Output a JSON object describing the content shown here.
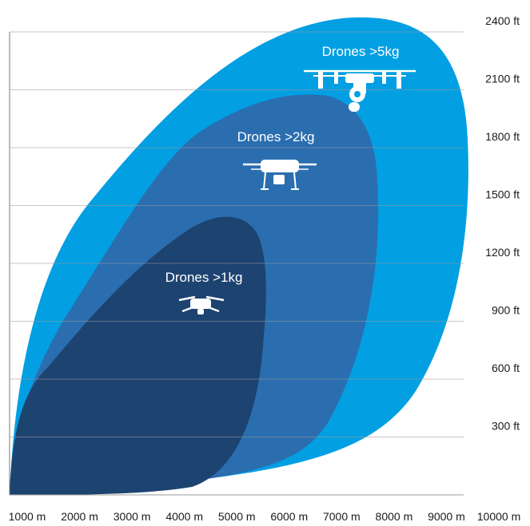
{
  "chart_data": {
    "type": "area",
    "title": "",
    "xlabel": "",
    "ylabel": "",
    "x_ticks": [
      "1000 m",
      "2000 m",
      "3000 m",
      "4000 m",
      "5000 m",
      "6000 m",
      "7000 m",
      "8000 m",
      "9000 m",
      "10000 m"
    ],
    "y_ticks": [
      "300 ft",
      "600 ft",
      "900 ft",
      "1200 ft",
      "1500 ft",
      "1800 ft",
      "2100 ft",
      "2400 ft"
    ],
    "xlim": [
      1000,
      10000
    ],
    "ylim": [
      0,
      2400
    ],
    "grid": "horizontal",
    "regions": [
      {
        "name": "Drones >5kg",
        "color": "#039fe3",
        "max_x": 9500,
        "max_y": 2480,
        "icon": "large-hexacopter-drone-icon"
      },
      {
        "name": "Drones >2kg",
        "color": "#2a6eb0",
        "max_x": 8000,
        "max_y": 2110,
        "icon": "quadcopter-drone-icon"
      },
      {
        "name": "Drones >1kg",
        "color": "#1d4370",
        "max_x": 5900,
        "max_y": 1450,
        "icon": "small-foldable-drone-icon"
      }
    ]
  }
}
